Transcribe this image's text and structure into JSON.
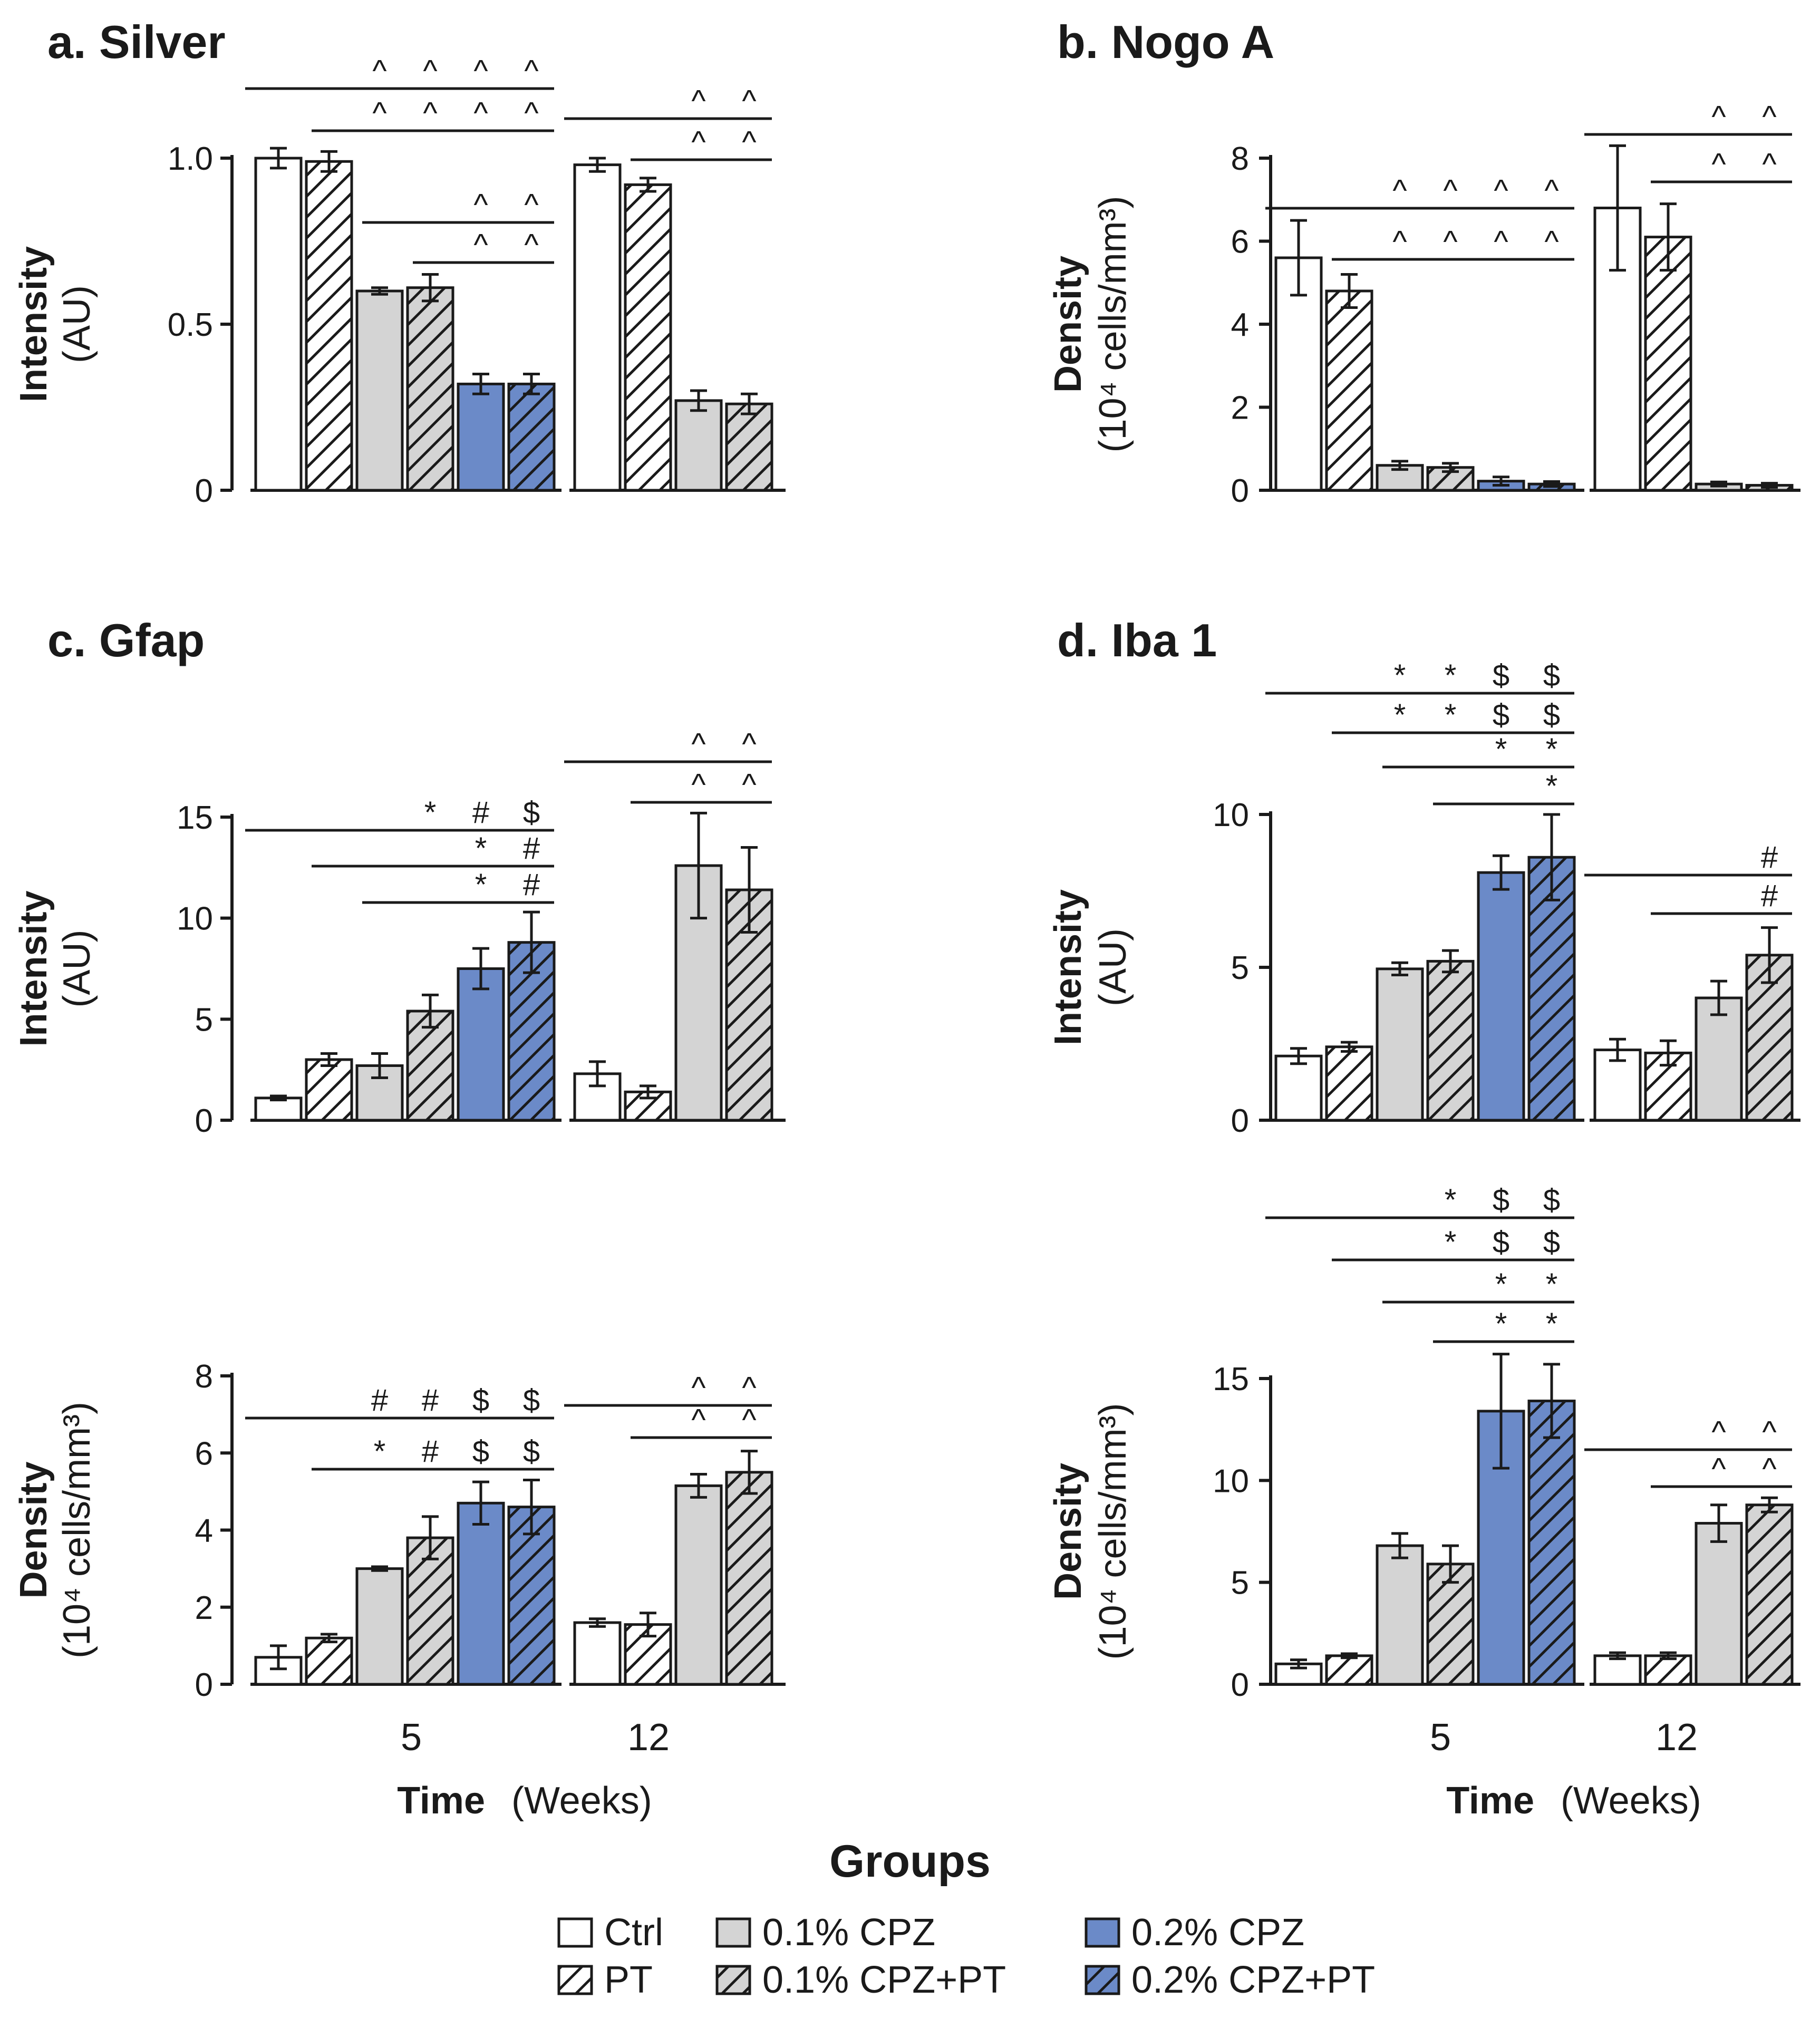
{
  "figure": {
    "time_label": "Time",
    "time_unit": "(Weeks)",
    "time_ticks": [
      "5",
      "12"
    ],
    "legend_title": "Groups",
    "legend": [
      {
        "label": "Ctrl",
        "group": "ctrl"
      },
      {
        "label": "PT",
        "group": "pt"
      },
      {
        "label": "0.1% CPZ",
        "group": "cpz01"
      },
      {
        "label": "0.1% CPZ+PT",
        "group": "cpz01pt"
      },
      {
        "label": "0.2% CPZ",
        "group": "cpz02"
      },
      {
        "label": "0.2% CPZ+PT",
        "group": "cpz02pt"
      }
    ],
    "colors": {
      "ctrl": "#ffffff",
      "cpz01": "#d4d4d4",
      "cpz02": "#6b8ac8",
      "axis": "#1a1a1a"
    }
  },
  "chart_data": [
    {
      "id": "a",
      "type": "bar",
      "title": "a. Silver",
      "ylabel": "Intensity",
      "ylabel_unit": "(AU)",
      "ylim": [
        0,
        1.0
      ],
      "ytick_values": [
        0,
        0.5,
        1.0
      ],
      "ytick_labels": [
        "0",
        "0.5",
        "1.0"
      ],
      "groups": [
        {
          "week": "5",
          "values": [
            1.0,
            0.99,
            0.6,
            0.61,
            0.32,
            0.32
          ],
          "errors": [
            0.03,
            0.03,
            0.01,
            0.04,
            0.03,
            0.03
          ]
        },
        {
          "week": "12",
          "values": [
            0.98,
            0.92,
            0.27,
            0.26
          ],
          "errors": [
            0.02,
            0.02,
            0.03,
            0.03
          ]
        }
      ],
      "sig": [
        {
          "week": "5",
          "from": 0,
          "to": 5,
          "marks": [
            {
              "bar": 2,
              "s": "^"
            },
            {
              "bar": 3,
              "s": "^"
            },
            {
              "bar": 4,
              "s": "^"
            },
            {
              "bar": 5,
              "s": "^"
            }
          ]
        },
        {
          "week": "5",
          "from": 1,
          "to": 5,
          "marks": [
            {
              "bar": 2,
              "s": "^"
            },
            {
              "bar": 3,
              "s": "^"
            },
            {
              "bar": 4,
              "s": "^"
            },
            {
              "bar": 5,
              "s": "^"
            }
          ]
        },
        {
          "week": "5",
          "from": 2,
          "to": 5,
          "marks": [
            {
              "bar": 4,
              "s": "^"
            },
            {
              "bar": 5,
              "s": "^"
            }
          ]
        },
        {
          "week": "5",
          "from": 3,
          "to": 5,
          "marks": [
            {
              "bar": 4,
              "s": "^"
            },
            {
              "bar": 5,
              "s": "^"
            }
          ]
        },
        {
          "week": "12",
          "from": 0,
          "to": 3,
          "marks": [
            {
              "bar": 2,
              "s": "^"
            },
            {
              "bar": 3,
              "s": "^"
            }
          ]
        },
        {
          "week": "12",
          "from": 1,
          "to": 3,
          "marks": [
            {
              "bar": 2,
              "s": "^"
            },
            {
              "bar": 3,
              "s": "^"
            }
          ]
        }
      ]
    },
    {
      "id": "b",
      "type": "bar",
      "title": "b. Nogo A",
      "ylabel": "Density",
      "ylabel_unit": "(10⁴ cells/mm³)",
      "ylim": [
        0,
        8
      ],
      "ytick_values": [
        0,
        2,
        4,
        6,
        8
      ],
      "ytick_labels": [
        "0",
        "2",
        "4",
        "6",
        "8"
      ],
      "groups": [
        {
          "week": "5",
          "values": [
            5.6,
            4.8,
            0.6,
            0.55,
            0.22,
            0.15
          ],
          "errors": [
            0.9,
            0.4,
            0.1,
            0.1,
            0.1,
            0.06
          ]
        },
        {
          "week": "12",
          "values": [
            6.8,
            6.1,
            0.15,
            0.12
          ],
          "errors": [
            1.5,
            0.8,
            0.05,
            0.05
          ]
        }
      ],
      "sig": [
        {
          "week": "5",
          "from": 0,
          "to": 5,
          "marks": [
            {
              "bar": 2,
              "s": "^"
            },
            {
              "bar": 3,
              "s": "^"
            },
            {
              "bar": 4,
              "s": "^"
            },
            {
              "bar": 5,
              "s": "^"
            }
          ]
        },
        {
          "week": "5",
          "from": 1,
          "to": 5,
          "marks": [
            {
              "bar": 2,
              "s": "^"
            },
            {
              "bar": 3,
              "s": "^"
            },
            {
              "bar": 4,
              "s": "^"
            },
            {
              "bar": 5,
              "s": "^"
            }
          ]
        },
        {
          "week": "12",
          "from": 0,
          "to": 3,
          "marks": [
            {
              "bar": 2,
              "s": "^"
            },
            {
              "bar": 3,
              "s": "^"
            }
          ]
        },
        {
          "week": "12",
          "from": 1,
          "to": 3,
          "marks": [
            {
              "bar": 2,
              "s": "^"
            },
            {
              "bar": 3,
              "s": "^"
            }
          ]
        }
      ]
    },
    {
      "id": "c1",
      "type": "bar",
      "title": "c. Gfap",
      "ylabel": "Intensity",
      "ylabel_unit": "(AU)",
      "ylim": [
        0,
        15
      ],
      "ytick_values": [
        0,
        5,
        10,
        15
      ],
      "ytick_labels": [
        "0",
        "5",
        "10",
        "15"
      ],
      "groups": [
        {
          "week": "5",
          "values": [
            1.1,
            3.0,
            2.7,
            5.4,
            7.5,
            8.8
          ],
          "errors": [
            0.1,
            0.3,
            0.6,
            0.8,
            1.0,
            1.5
          ]
        },
        {
          "week": "12",
          "values": [
            2.3,
            1.4,
            12.6,
            11.4
          ],
          "errors": [
            0.6,
            0.3,
            2.6,
            2.1
          ]
        }
      ],
      "sig": [
        {
          "week": "5",
          "from": 0,
          "to": 5,
          "marks": [
            {
              "bar": 3,
              "s": "*"
            },
            {
              "bar": 4,
              "s": "#"
            },
            {
              "bar": 5,
              "s": "$"
            }
          ]
        },
        {
          "week": "5",
          "from": 1,
          "to": 5,
          "marks": [
            {
              "bar": 4,
              "s": "*"
            },
            {
              "bar": 5,
              "s": "#"
            }
          ]
        },
        {
          "week": "5",
          "from": 2,
          "to": 5,
          "marks": [
            {
              "bar": 4,
              "s": "*"
            },
            {
              "bar": 5,
              "s": "#"
            }
          ]
        },
        {
          "week": "12",
          "from": 0,
          "to": 3,
          "marks": [
            {
              "bar": 2,
              "s": "^"
            },
            {
              "bar": 3,
              "s": "^"
            }
          ]
        },
        {
          "week": "12",
          "from": 1,
          "to": 3,
          "marks": [
            {
              "bar": 2,
              "s": "^"
            },
            {
              "bar": 3,
              "s": "^"
            }
          ]
        }
      ]
    },
    {
      "id": "c2",
      "type": "bar",
      "title": "",
      "ylabel": "Density",
      "ylabel_unit": "(10⁴ cells/mm³)",
      "ylim": [
        0,
        8
      ],
      "ytick_values": [
        0,
        2,
        4,
        6,
        8
      ],
      "ytick_labels": [
        "0",
        "2",
        "4",
        "6",
        "8"
      ],
      "groups": [
        {
          "week": "5",
          "values": [
            0.7,
            1.2,
            3.0,
            3.8,
            4.7,
            4.6
          ],
          "errors": [
            0.3,
            0.1,
            0.05,
            0.55,
            0.55,
            0.7
          ]
        },
        {
          "week": "12",
          "values": [
            1.6,
            1.55,
            5.15,
            5.5
          ],
          "errors": [
            0.1,
            0.3,
            0.3,
            0.55
          ]
        }
      ],
      "sig": [
        {
          "week": "5",
          "from": 0,
          "to": 5,
          "marks": [
            {
              "bar": 2,
              "s": "#"
            },
            {
              "bar": 3,
              "s": "#"
            },
            {
              "bar": 4,
              "s": "$"
            },
            {
              "bar": 5,
              "s": "$"
            }
          ]
        },
        {
          "week": "5",
          "from": 1,
          "to": 5,
          "marks": [
            {
              "bar": 2,
              "s": "*"
            },
            {
              "bar": 3,
              "s": "#"
            },
            {
              "bar": 4,
              "s": "$"
            },
            {
              "bar": 5,
              "s": "$"
            }
          ]
        },
        {
          "week": "12",
          "from": 0,
          "to": 3,
          "marks": [
            {
              "bar": 2,
              "s": "^"
            },
            {
              "bar": 3,
              "s": "^"
            }
          ]
        },
        {
          "week": "12",
          "from": 1,
          "to": 3,
          "marks": [
            {
              "bar": 2,
              "s": "^"
            },
            {
              "bar": 3,
              "s": "^"
            }
          ]
        }
      ]
    },
    {
      "id": "d1",
      "type": "bar",
      "title": "d. Iba 1",
      "ylabel": "Intensity",
      "ylabel_unit": "(AU)",
      "ylim": [
        0,
        10
      ],
      "ytick_values": [
        0,
        5,
        10
      ],
      "ytick_labels": [
        "0",
        "5",
        "10"
      ],
      "groups": [
        {
          "week": "5",
          "values": [
            2.1,
            2.4,
            4.95,
            5.2,
            8.1,
            8.6
          ],
          "errors": [
            0.25,
            0.15,
            0.2,
            0.35,
            0.55,
            1.4
          ]
        },
        {
          "week": "12",
          "values": [
            2.3,
            2.2,
            4.0,
            5.4
          ],
          "errors": [
            0.35,
            0.4,
            0.55,
            0.9
          ]
        }
      ],
      "sig": [
        {
          "week": "5",
          "from": 0,
          "to": 5,
          "marks": [
            {
              "bar": 2,
              "s": "*"
            },
            {
              "bar": 3,
              "s": "*"
            },
            {
              "bar": 4,
              "s": "$"
            },
            {
              "bar": 5,
              "s": "$"
            }
          ]
        },
        {
          "week": "5",
          "from": 1,
          "to": 5,
          "marks": [
            {
              "bar": 2,
              "s": "*"
            },
            {
              "bar": 3,
              "s": "*"
            },
            {
              "bar": 4,
              "s": "$"
            },
            {
              "bar": 5,
              "s": "$"
            }
          ]
        },
        {
          "week": "5",
          "from": 2,
          "to": 5,
          "marks": [
            {
              "bar": 4,
              "s": "*"
            },
            {
              "bar": 5,
              "s": "*"
            }
          ]
        },
        {
          "week": "5",
          "from": 3,
          "to": 5,
          "marks": [
            {
              "bar": 5,
              "s": "*"
            }
          ]
        },
        {
          "week": "12",
          "from": 0,
          "to": 3,
          "marks": [
            {
              "bar": 3,
              "s": "#"
            }
          ]
        },
        {
          "week": "12",
          "from": 1,
          "to": 3,
          "marks": [
            {
              "bar": 3,
              "s": "#"
            }
          ]
        }
      ]
    },
    {
      "id": "d2",
      "type": "bar",
      "title": "",
      "ylabel": "Density",
      "ylabel_unit": "(10⁴ cells/mm³)",
      "ylim": [
        0,
        15
      ],
      "ytick_values": [
        0,
        5,
        10,
        15
      ],
      "ytick_labels": [
        "0",
        "5",
        "10",
        "15"
      ],
      "groups": [
        {
          "week": "5",
          "values": [
            1.0,
            1.4,
            6.8,
            5.9,
            13.4,
            13.9
          ],
          "errors": [
            0.2,
            0.1,
            0.6,
            0.9,
            2.8,
            1.8
          ]
        },
        {
          "week": "12",
          "values": [
            1.4,
            1.4,
            7.9,
            8.8
          ],
          "errors": [
            0.15,
            0.15,
            0.9,
            0.35
          ]
        }
      ],
      "sig": [
        {
          "week": "5",
          "from": 0,
          "to": 5,
          "marks": [
            {
              "bar": 3,
              "s": "*"
            },
            {
              "bar": 4,
              "s": "$"
            },
            {
              "bar": 5,
              "s": "$"
            }
          ]
        },
        {
          "week": "5",
          "from": 1,
          "to": 5,
          "marks": [
            {
              "bar": 3,
              "s": "*"
            },
            {
              "bar": 4,
              "s": "$"
            },
            {
              "bar": 5,
              "s": "$"
            }
          ]
        },
        {
          "week": "5",
          "from": 2,
          "to": 5,
          "marks": [
            {
              "bar": 4,
              "s": "*"
            },
            {
              "bar": 5,
              "s": "*"
            }
          ]
        },
        {
          "week": "5",
          "from": 3,
          "to": 5,
          "marks": [
            {
              "bar": 4,
              "s": "*"
            },
            {
              "bar": 5,
              "s": "*"
            }
          ]
        },
        {
          "week": "12",
          "from": 0,
          "to": 3,
          "marks": [
            {
              "bar": 2,
              "s": "^"
            },
            {
              "bar": 3,
              "s": "^"
            }
          ]
        },
        {
          "week": "12",
          "from": 1,
          "to": 3,
          "marks": [
            {
              "bar": 2,
              "s": "^"
            },
            {
              "bar": 3,
              "s": "^"
            }
          ]
        }
      ]
    }
  ]
}
